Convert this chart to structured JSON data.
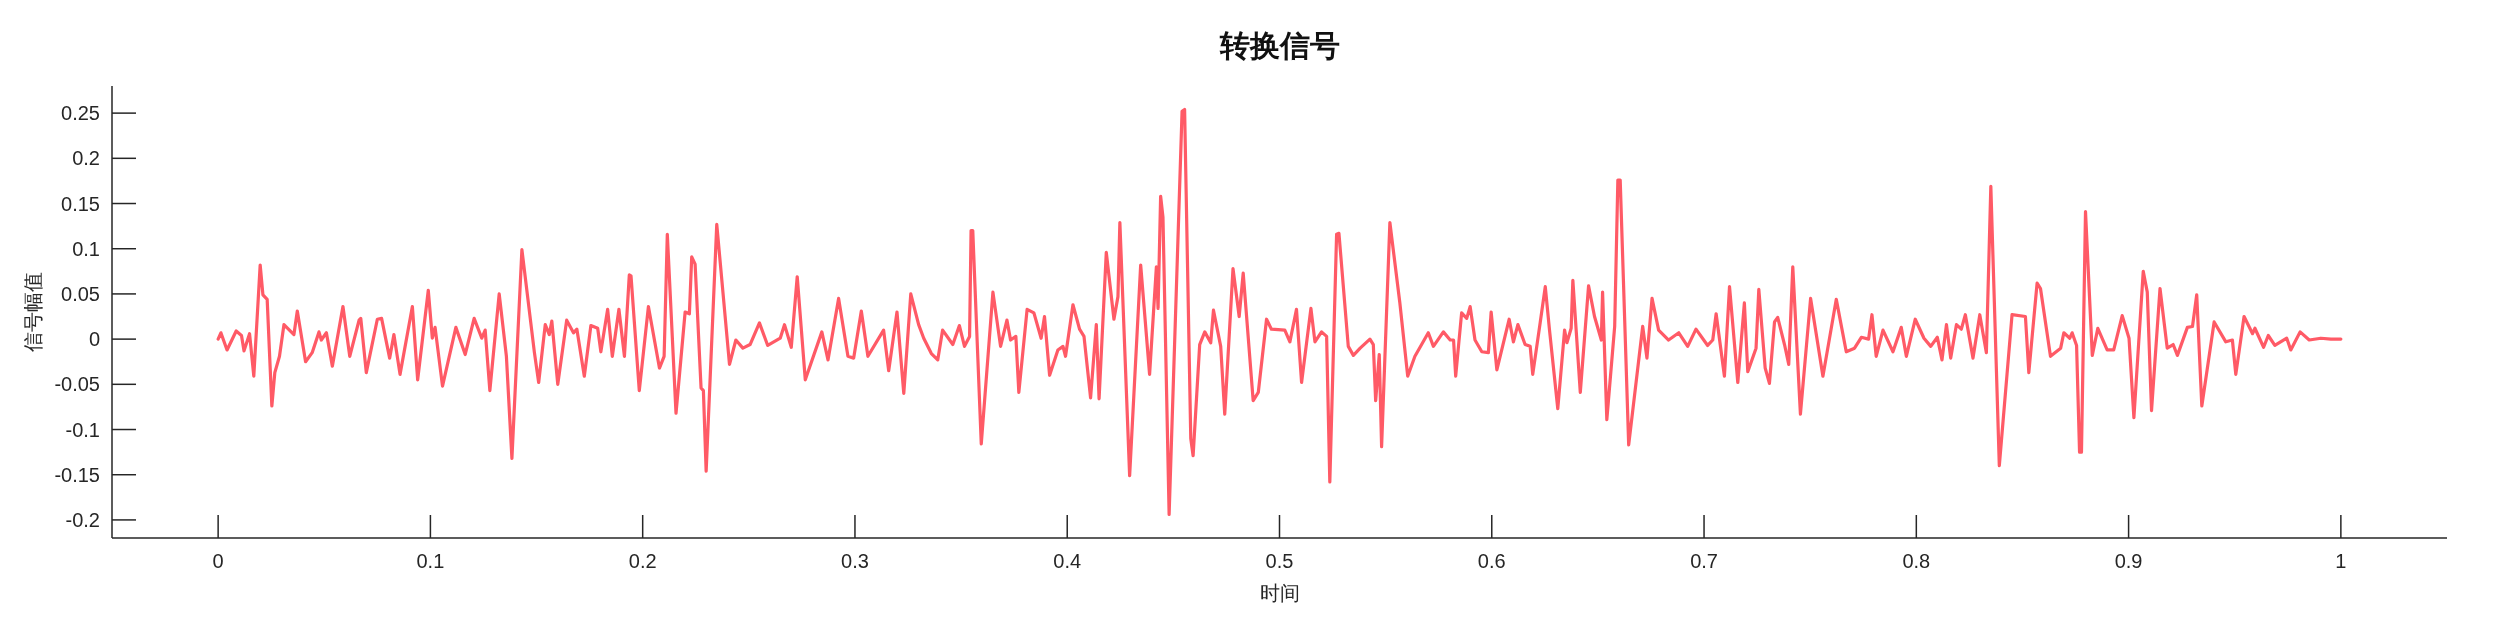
{
  "chart_data": {
    "type": "line",
    "title": "转换信号",
    "xlabel": "时间",
    "ylabel": "信号幅值",
    "color": "#ff5a66",
    "xlim": [
      -0.05,
      1.05
    ],
    "ylim": [
      -0.22,
      0.28
    ],
    "xticks": [
      0,
      0.1,
      0.2,
      0.3,
      0.4,
      0.5,
      0.6,
      0.7,
      0.8,
      0.9,
      1
    ],
    "yticks": [
      -0.2,
      -0.15,
      -0.1,
      -0.05,
      0,
      0.05,
      0.1,
      0.15,
      0.2,
      0.25
    ],
    "x": [
      0,
      0.0013,
      0.0042,
      0.0085,
      0.011,
      0.0122,
      0.0148,
      0.0168,
      0.0198,
      0.0211,
      0.0231,
      0.0253,
      0.0267,
      0.0289,
      0.031,
      0.0357,
      0.0373,
      0.0412,
      0.0443,
      0.0475,
      0.0486,
      0.051,
      0.0538,
      0.0588,
      0.062,
      0.0664,
      0.0672,
      0.0698,
      0.075,
      0.077,
      0.0808,
      0.0828,
      0.0857,
      0.0915,
      0.094,
      0.099,
      0.1009,
      0.1022,
      0.1057,
      0.112,
      0.1164,
      0.1206,
      0.1242,
      0.1258,
      0.128,
      0.1324,
      0.1358,
      0.1384,
      0.1431,
      0.149,
      0.151,
      0.1541,
      0.156,
      0.1572,
      0.16,
      0.1642,
      0.1674,
      0.169,
      0.1725,
      0.1756,
      0.1788,
      0.1803,
      0.1835,
      0.1857,
      0.1888,
      0.1914,
      0.1937,
      0.1945,
      0.1984,
      0.2027,
      0.2079,
      0.2101,
      0.2116,
      0.2157,
      0.22,
      0.222,
      0.2231,
      0.2247,
      0.2275,
      0.2286,
      0.2299,
      0.2349,
      0.2409,
      0.2439,
      0.2472,
      0.2506,
      0.255,
      0.2589,
      0.2648,
      0.2668,
      0.27,
      0.2728,
      0.2766,
      0.2844,
      0.2873,
      0.2923,
      0.2967,
      0.2994,
      0.303,
      0.3061,
      0.3135,
      0.3159,
      0.3198,
      0.323,
      0.3263,
      0.33,
      0.3324,
      0.336,
      0.339,
      0.3413,
      0.3461,
      0.3492,
      0.3516,
      0.354,
      0.3547,
      0.3555,
      0.3595,
      0.365,
      0.3686,
      0.3716,
      0.3733,
      0.3758,
      0.3772,
      0.3811,
      0.3843,
      0.3877,
      0.3893,
      0.3917,
      0.3956,
      0.398,
      0.3992,
      0.4027,
      0.4058,
      0.4079,
      0.411,
      0.4137,
      0.415,
      0.4184,
      0.422,
      0.4239,
      0.4248,
      0.4294,
      0.4346,
      0.4388,
      0.442,
      0.4428,
      0.444,
      0.4451,
      0.448,
      0.4541,
      0.4553,
      0.4582,
      0.4593,
      0.4624,
      0.4648,
      0.4676,
      0.4689,
      0.4723,
      0.4742,
      0.4781,
      0.481,
      0.4829,
      0.4876,
      0.49,
      0.4939,
      0.4962,
      0.5025,
      0.5049,
      0.508,
      0.5104,
      0.5148,
      0.5167,
      0.5198,
      0.5222,
      0.5237,
      0.5269,
      0.528,
      0.5324,
      0.5348,
      0.538,
      0.5426,
      0.5442,
      0.5453,
      0.547,
      0.5481,
      0.552,
      0.5567,
      0.5604,
      0.5638,
      0.5701,
      0.5725,
      0.5772,
      0.5804,
      0.582,
      0.583,
      0.5858,
      0.5882,
      0.5898,
      0.5921,
      0.5953,
      0.5984,
      0.5997,
      0.6024,
      0.6082,
      0.6102,
      0.6123,
      0.6157,
      0.6181,
      0.6193,
      0.6228,
      0.6252,
      0.6272,
      0.6311,
      0.6343,
      0.6354,
      0.6374,
      0.6382,
      0.6417,
      0.6456,
      0.6484,
      0.6516,
      0.6522,
      0.6542,
      0.6579,
      0.6594,
      0.6605,
      0.6645,
      0.6711,
      0.6731,
      0.6755,
      0.6786,
      0.6833,
      0.6881,
      0.6923,
      0.6962,
      0.7017,
      0.7041,
      0.7057,
      0.7096,
      0.712,
      0.7159,
      0.719,
      0.7206,
      0.7245,
      0.7258,
      0.7288,
      0.7308,
      0.7332,
      0.7347,
      0.7379,
      0.7399,
      0.7418,
      0.7454,
      0.7502,
      0.756,
      0.7623,
      0.767,
      0.7709,
      0.7741,
      0.7775,
      0.7791,
      0.7811,
      0.7843,
      0.789,
      0.7929,
      0.7953,
      0.7995,
      0.8036,
      0.8068,
      0.8099,
      0.8121,
      0.8142,
      0.8162,
      0.8189,
      0.8212,
      0.8231,
      0.8267,
      0.8299,
      0.833,
      0.8351,
      0.8391,
      0.8451,
      0.8514,
      0.853,
      0.8569,
      0.8585,
      0.8632,
      0.868,
      0.8695,
      0.8723,
      0.8734,
      0.8755,
      0.8769,
      0.8778,
      0.8797,
      0.8829,
      0.8855,
      0.8899,
      0.893,
      0.897,
      0.9002,
      0.9025,
      0.9069,
      0.9088,
      0.9108,
      0.9148,
      0.9182,
      0.921,
      0.923,
      0.9277,
      0.9301,
      0.9321,
      0.9345,
      0.9403,
      0.9458,
      0.9489,
      0.9505,
      0.9544,
      0.9584,
      0.9595,
      0.9636,
      0.9658,
      0.9689,
      0.9745,
      0.9764,
      0.9808,
      0.9851,
      0.9906,
      0.9953,
      1.0
    ],
    "values": [
      0,
      0.007,
      -0.012,
      0.009,
      0.004,
      -0.013,
      0.006,
      -0.041,
      0.082,
      0.049,
      0.044,
      -0.074,
      -0.037,
      -0.019,
      0.016,
      0.005,
      0.031,
      -0.025,
      -0.015,
      0.008,
      -0.001,
      0.007,
      -0.03,
      0.036,
      -0.019,
      0.021,
      0.023,
      -0.037,
      0.022,
      0.023,
      -0.021,
      0.005,
      -0.039,
      0.036,
      -0.045,
      0.054,
      0.001,
      0.013,
      -0.052,
      0.013,
      -0.017,
      0.023,
      0.001,
      0.01,
      -0.057,
      0.05,
      -0.019,
      -0.132,
      0.099,
      -0.015,
      -0.048,
      0.016,
      0.005,
      0.02,
      -0.05,
      0.021,
      0.007,
      0.011,
      -0.041,
      0.015,
      0.012,
      -0.014,
      0.033,
      -0.019,
      0.033,
      -0.019,
      0.071,
      0.07,
      -0.057,
      0.036,
      -0.032,
      -0.019,
      0.116,
      -0.082,
      0.03,
      0.028,
      0.091,
      0.083,
      -0.054,
      -0.057,
      -0.146,
      0.127,
      -0.028,
      -0.001,
      -0.01,
      -0.006,
      0.018,
      -0.007,
      0.001,
      0.016,
      -0.009,
      0.069,
      -0.045,
      0.008,
      -0.023,
      0.045,
      -0.019,
      -0.021,
      0.031,
      -0.019,
      0.01,
      -0.035,
      0.03,
      -0.06,
      0.05,
      0.016,
      0.001,
      -0.016,
      -0.023,
      0.01,
      -0.006,
      0.015,
      -0.008,
      0.003,
      0.12,
      0.12,
      -0.116,
      0.052,
      -0.008,
      0.021,
      -0.001,
      0.003,
      -0.059,
      0.033,
      0.029,
      0.001,
      0.025,
      -0.04,
      -0.012,
      -0.008,
      -0.019,
      0.038,
      0.011,
      0.003,
      -0.065,
      0.016,
      -0.066,
      0.096,
      0.022,
      0.047,
      0.129,
      -0.151,
      0.082,
      -0.039,
      0.08,
      0.034,
      0.158,
      0.135,
      -0.194,
      0.252,
      0.254,
      -0.11,
      -0.129,
      -0.006,
      0.008,
      -0.004,
      0.032,
      -0.008,
      -0.083,
      0.078,
      0.025,
      0.073,
      -0.068,
      -0.059,
      0.022,
      0.011,
      0.01,
      -0.003,
      0.033,
      -0.048,
      0.034,
      -0.003,
      0.008,
      0.003,
      -0.158,
      0.116,
      0.117,
      -0.008,
      -0.018,
      -0.01,
      0.0,
      -0.006,
      -0.068,
      -0.017,
      -0.119,
      0.129,
      0.04,
      -0.041,
      -0.019,
      0.007,
      -0.008,
      0.008,
      -0.001,
      -0.001,
      -0.041,
      0.029,
      0.023,
      0.036,
      -0.001,
      -0.014,
      -0.015,
      0.03,
      -0.034,
      0.022,
      -0.003,
      0.016,
      -0.006,
      -0.008,
      -0.039,
      0.018,
      0.058,
      0.01,
      -0.077,
      0.01,
      -0.004,
      0.012,
      0.065,
      -0.059,
      0.059,
      0.025,
      -0.001,
      0.052,
      -0.089,
      0.014,
      0.176,
      0.176,
      -0.117,
      0.014,
      -0.021,
      0.045,
      0.01,
      -0.001,
      0.007,
      -0.008,
      0.011,
      -0.007,
      -0.001,
      0.028,
      -0.041,
      0.058,
      -0.048,
      0.04,
      -0.036,
      -0.01,
      0.055,
      -0.032,
      -0.049,
      0.019,
      0.024,
      -0.006,
      -0.028,
      0.08,
      -0.083,
      0.045,
      -0.041,
      0.044,
      -0.014,
      -0.01,
      0.002,
      0.0,
      0.027,
      -0.019,
      0.01,
      -0.014,
      0.013,
      -0.019,
      0.022,
      0.001,
      -0.008,
      0.002,
      -0.023,
      0.016,
      -0.021,
      0.016,
      0.011,
      0.027,
      -0.021,
      0.027,
      -0.015,
      0.169,
      -0.14,
      0.027,
      0.025,
      -0.037,
      0.062,
      0.056,
      -0.019,
      -0.01,
      0.007,
      0.001,
      0.007,
      -0.007,
      -0.125,
      -0.125,
      0.141,
      -0.018,
      0.012,
      -0.012,
      -0.012,
      0.026,
      0.001,
      -0.087,
      0.075,
      0.052,
      -0.079,
      0.056,
      -0.01,
      -0.006,
      -0.018,
      0.013,
      0.014,
      0.049,
      -0.074,
      0.019,
      -0.003,
      -0.001,
      -0.039,
      0.025,
      0.006,
      0.012,
      -0.009,
      0.004,
      -0.007,
      0.001,
      -0.012,
      0.008,
      -0.001,
      0.001,
      0.0,
      0.0
    ]
  }
}
